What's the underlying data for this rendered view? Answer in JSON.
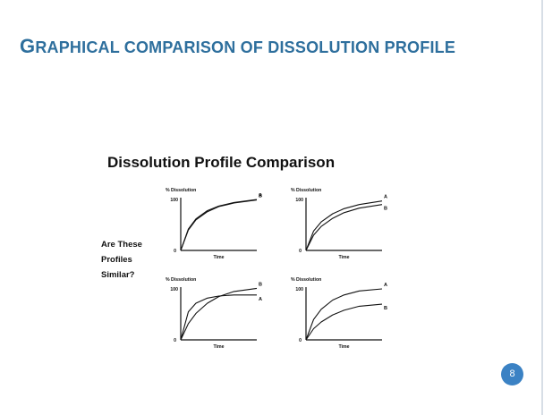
{
  "slide": {
    "title_first_letter": "G",
    "title_rest": "raphical comparison of dissolution profile",
    "page_number": "8",
    "accent_color": "#2e6f9d",
    "badge_color": "#3b82c4"
  },
  "figure": {
    "title": "Dissolution Profile Comparison",
    "question_lines": [
      "Are These",
      "Profiles",
      "Similar?"
    ]
  },
  "chart_data": [
    {
      "type": "line",
      "ylabel": "% Dissolution",
      "xlabel": "Time",
      "y_ticks": [
        "100",
        "0"
      ],
      "ylim": [
        0,
        100
      ],
      "series": [
        {
          "name": "A",
          "x": [
            0,
            0.1,
            0.2,
            0.35,
            0.5,
            0.7,
            1.0
          ],
          "values": [
            0,
            42,
            62,
            78,
            87,
            94,
            100
          ]
        },
        {
          "name": "B",
          "x": [
            0,
            0.1,
            0.2,
            0.35,
            0.5,
            0.7,
            1.0
          ],
          "values": [
            0,
            40,
            60,
            76,
            86,
            93,
            99
          ]
        }
      ]
    },
    {
      "type": "line",
      "ylabel": "% Dissolution",
      "xlabel": "Time",
      "y_ticks": [
        "100",
        "0"
      ],
      "ylim": [
        0,
        100
      ],
      "series": [
        {
          "name": "A",
          "x": [
            0,
            0.1,
            0.2,
            0.35,
            0.5,
            0.7,
            1.0
          ],
          "values": [
            0,
            38,
            56,
            72,
            82,
            90,
            97
          ]
        },
        {
          "name": "B",
          "x": [
            0,
            0.1,
            0.2,
            0.35,
            0.5,
            0.7,
            1.0
          ],
          "values": [
            0,
            30,
            47,
            63,
            74,
            83,
            90
          ]
        }
      ]
    },
    {
      "type": "line",
      "ylabel": "% Dissolution",
      "xlabel": "Time",
      "y_ticks": [
        "100",
        "0"
      ],
      "ylim": [
        0,
        100
      ],
      "series": [
        {
          "name": "B",
          "x": [
            0,
            0.1,
            0.2,
            0.35,
            0.5,
            0.7,
            1.0
          ],
          "values": [
            0,
            32,
            52,
            72,
            85,
            95,
            101
          ]
        },
        {
          "name": "A",
          "x": [
            0,
            0.1,
            0.2,
            0.35,
            0.5,
            0.7,
            1.0
          ],
          "values": [
            0,
            55,
            72,
            82,
            86,
            88,
            88
          ]
        }
      ]
    },
    {
      "type": "line",
      "ylabel": "% Dissolution",
      "xlabel": "Time",
      "y_ticks": [
        "100",
        "0"
      ],
      "ylim": [
        0,
        100
      ],
      "series": [
        {
          "name": "A",
          "x": [
            0,
            0.1,
            0.2,
            0.35,
            0.5,
            0.7,
            1.0
          ],
          "values": [
            0,
            40,
            60,
            78,
            88,
            96,
            100
          ]
        },
        {
          "name": "B",
          "x": [
            0,
            0.1,
            0.2,
            0.35,
            0.5,
            0.7,
            1.0
          ],
          "values": [
            0,
            22,
            35,
            49,
            58,
            66,
            70
          ]
        }
      ]
    }
  ]
}
